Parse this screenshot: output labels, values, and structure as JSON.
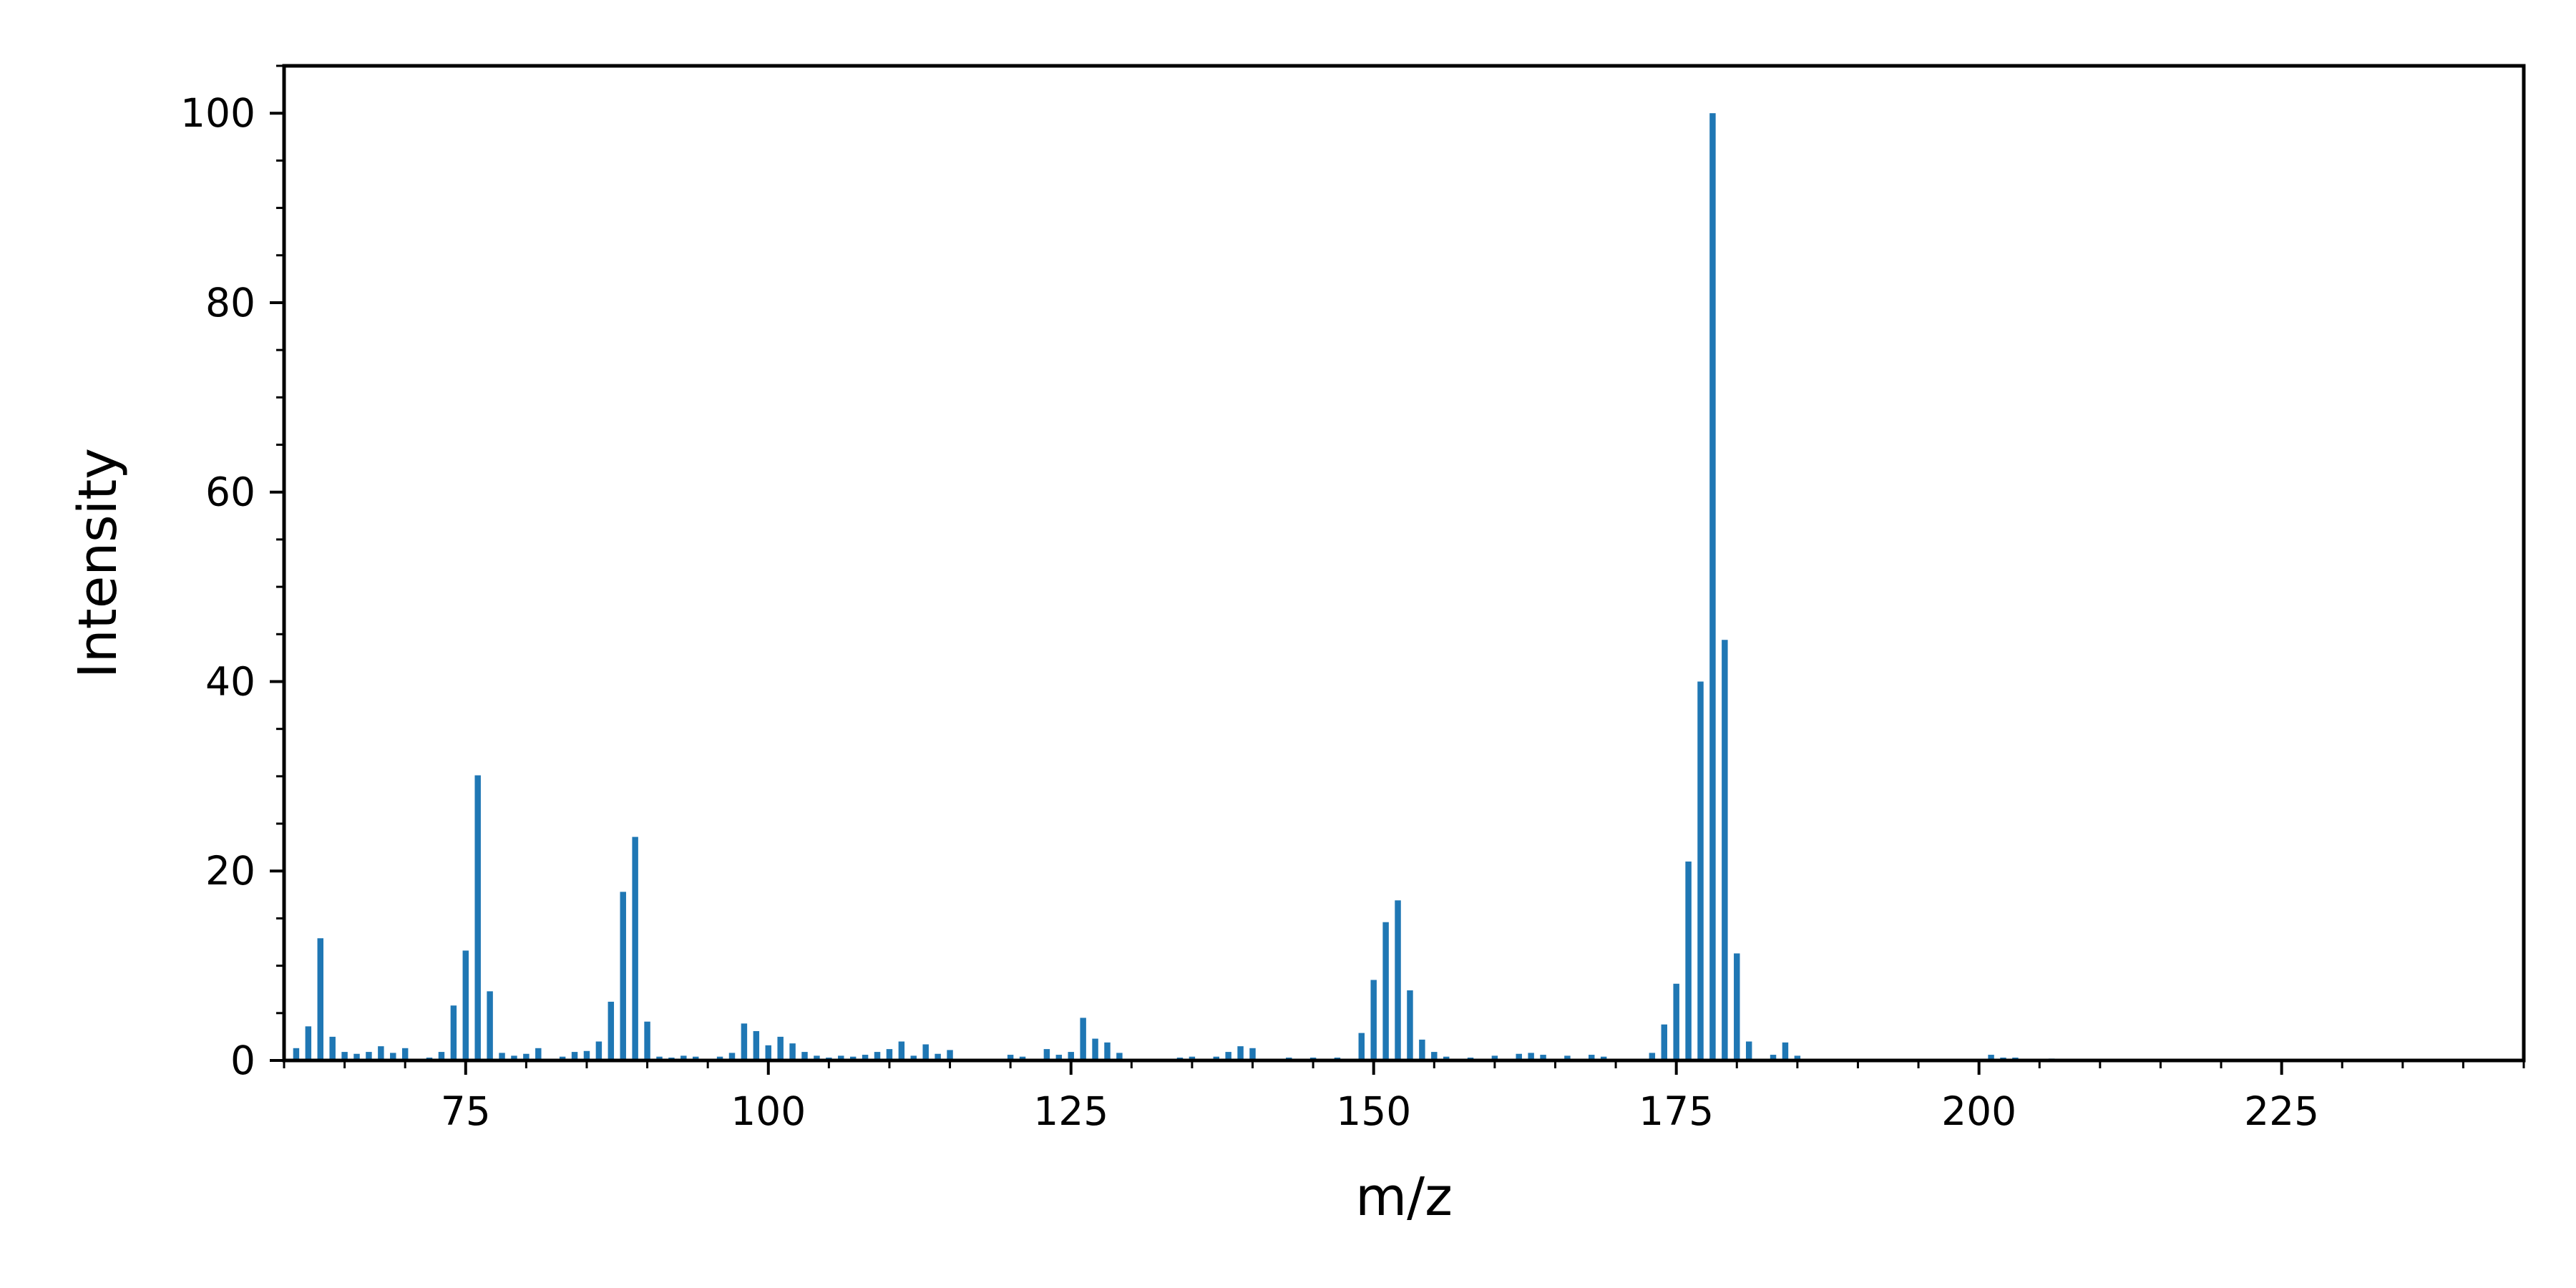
{
  "chart_data": {
    "type": "bar",
    "title": "",
    "xlabel": "m/z",
    "ylabel": "Intensity",
    "xlim": [
      60,
      245
    ],
    "ylim": [
      0,
      105
    ],
    "x_ticks": [
      75,
      100,
      125,
      150,
      175,
      200,
      225
    ],
    "y_ticks": [
      0,
      20,
      40,
      60,
      80,
      100
    ],
    "x_minor_step": 5,
    "y_minor_step": 5,
    "grid": false,
    "legend": "none",
    "bar_color": "#1f77b4",
    "series": [
      {
        "x": [
          61,
          62,
          63,
          64,
          65,
          66,
          67,
          68,
          69,
          70,
          72,
          73,
          74,
          75,
          76,
          77,
          78,
          79,
          80,
          81,
          83,
          84,
          85,
          86,
          87,
          88,
          89,
          90,
          91,
          92,
          93,
          94,
          96,
          97,
          98,
          99,
          100,
          101,
          102,
          103,
          104,
          105,
          106,
          107,
          108,
          109,
          110,
          111,
          112,
          113,
          114,
          115,
          120,
          121,
          123,
          124,
          125,
          126,
          127,
          128,
          129,
          134,
          135,
          137,
          138,
          139,
          140,
          143,
          145,
          147,
          149,
          150,
          151,
          152,
          153,
          154,
          155,
          156,
          158,
          160,
          162,
          163,
          164,
          166,
          168,
          169,
          173,
          174,
          175,
          176,
          177,
          178,
          179,
          180,
          181,
          183,
          184,
          185,
          201,
          202,
          203,
          206
        ],
        "values": [
          1.3,
          3.6,
          12.9,
          2.5,
          0.9,
          0.7,
          0.9,
          1.5,
          0.8,
          1.3,
          0.3,
          0.9,
          5.8,
          11.6,
          30.1,
          7.3,
          0.8,
          0.5,
          0.7,
          1.3,
          0.4,
          0.9,
          1.0,
          2.0,
          6.2,
          17.8,
          23.6,
          4.1,
          0.4,
          0.3,
          0.5,
          0.4,
          0.4,
          0.8,
          3.9,
          3.1,
          1.6,
          2.5,
          1.8,
          0.9,
          0.5,
          0.3,
          0.5,
          0.4,
          0.6,
          0.9,
          1.2,
          2.0,
          0.5,
          1.7,
          0.7,
          1.1,
          0.6,
          0.4,
          1.2,
          0.6,
          0.9,
          4.5,
          2.3,
          1.9,
          0.8,
          0.3,
          0.4,
          0.4,
          0.9,
          1.5,
          1.3,
          0.3,
          0.3,
          0.3,
          2.9,
          8.5,
          14.6,
          16.9,
          7.4,
          2.2,
          0.9,
          0.4,
          0.3,
          0.5,
          0.7,
          0.8,
          0.6,
          0.5,
          0.6,
          0.4,
          0.8,
          3.8,
          8.1,
          21.0,
          40.0,
          100.0,
          44.4,
          11.3,
          2.0,
          0.6,
          1.9,
          0.5,
          0.6,
          0.3,
          0.3,
          0.2
        ]
      }
    ]
  }
}
